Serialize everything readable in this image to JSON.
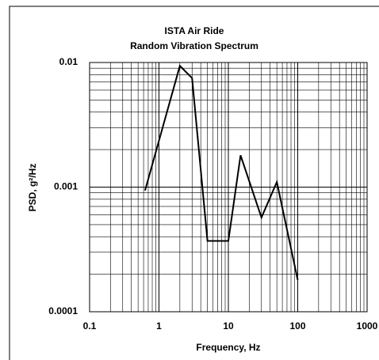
{
  "chart_data": {
    "type": "line",
    "title": [
      "ISTA Air Ride",
      "Random Vibration Spectrum"
    ],
    "x_label": "Frequency, Hz",
    "y_label": "PSD, g²/Hz",
    "x": [
      0.63,
      2,
      3,
      5,
      10,
      15,
      30,
      50,
      100
    ],
    "series": [
      {
        "color": "#000000",
        "values": [
          0.00094,
          0.0094,
          0.0075,
          0.00037,
          0.00037,
          0.0018,
          0.00057,
          0.0011,
          0.00018
        ]
      }
    ],
    "xlim": [
      0.1,
      1000
    ],
    "ylim": [
      0.0001,
      0.01
    ],
    "xticks": [
      0.1,
      1,
      10,
      100,
      1000
    ],
    "yticks": [
      0.0001,
      0.001,
      0.01
    ],
    "log_x": true,
    "log_y": true,
    "grid": true
  }
}
